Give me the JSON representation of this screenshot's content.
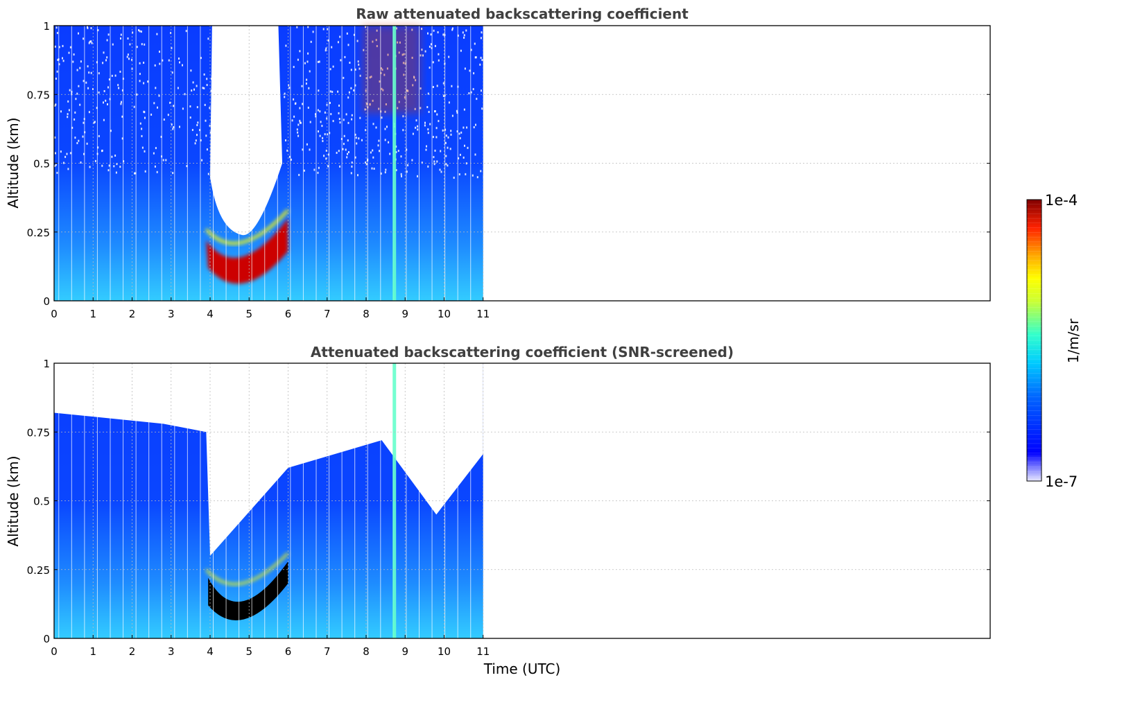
{
  "chart_data": [
    {
      "type": "heatmap",
      "title": "Raw attenuated backscattering coefficient",
      "xlabel": "",
      "ylabel": "Altitude (km)",
      "xlim": [
        0,
        24
      ],
      "ylim": [
        0,
        1
      ],
      "x_ticks": [
        "0",
        "1",
        "2",
        "3",
        "4",
        "5",
        "6",
        "7",
        "8",
        "9",
        "10",
        "11"
      ],
      "y_ticks": [
        "0",
        "0.25",
        "0.5",
        "0.75",
        "1"
      ],
      "data_extent_x": [
        0,
        11
      ],
      "grid": true,
      "features": [
        {
          "name": "fog layer",
          "x_range": [
            3.9,
            6.0
          ],
          "altitude_center_km": 0.15,
          "level": "high"
        },
        {
          "name": "signal gap",
          "x_range": [
            4.0,
            5.8
          ],
          "altitude_range_km": [
            0.3,
            1.0
          ],
          "level": "none"
        },
        {
          "name": "elevated aerosol",
          "x_range": [
            7.9,
            9.4
          ],
          "altitude_range_km": [
            0.65,
            1.0
          ],
          "level": "high"
        }
      ]
    },
    {
      "type": "heatmap",
      "title": "Attenuated backscattering coefficient (SNR-screened)",
      "xlabel": "Time (UTC)",
      "ylabel": "Altitude (km)",
      "xlim": [
        0,
        24
      ],
      "ylim": [
        0,
        1
      ],
      "x_ticks": [
        "0",
        "1",
        "2",
        "3",
        "4",
        "5",
        "6",
        "7",
        "8",
        "9",
        "10",
        "11"
      ],
      "y_ticks": [
        "0",
        "0.25",
        "0.5",
        "0.75",
        "1"
      ],
      "data_extent_x": [
        0,
        11
      ],
      "grid": true
    }
  ],
  "colorbar": {
    "label": "1/m/sr",
    "min_label": "1e-7",
    "max_label": "1e-4",
    "scale": "log",
    "colormap": "jet"
  }
}
